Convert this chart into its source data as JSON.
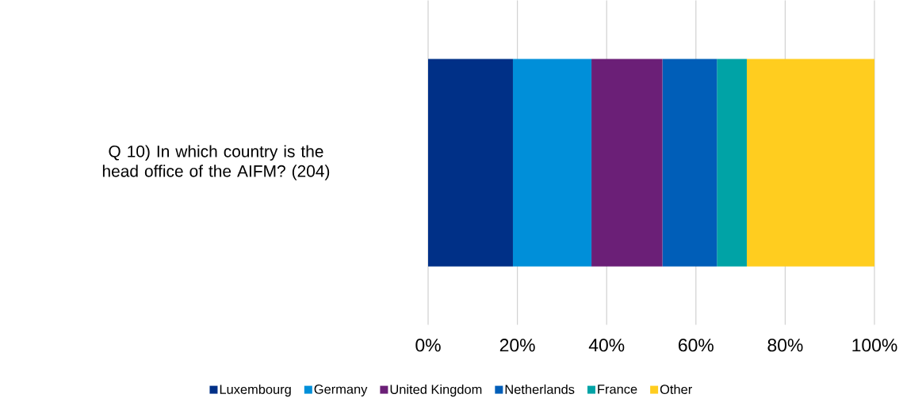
{
  "chart_data": {
    "type": "bar",
    "orientation": "horizontal",
    "stacked": true,
    "categories": [
      "Q 10) In which country is the head office of the AIFM? (204)"
    ],
    "series": [
      {
        "name": "Luxembourg",
        "color": "#003087",
        "values": [
          19.0
        ]
      },
      {
        "name": "Germany",
        "color": "#008fd9",
        "values": [
          17.6
        ]
      },
      {
        "name": "United Kingdom",
        "color": "#6b1f77",
        "values": [
          15.9
        ]
      },
      {
        "name": "Netherlands",
        "color": "#005eb8",
        "values": [
          12.2
        ]
      },
      {
        "name": "France",
        "color": "#00a3a6",
        "values": [
          6.7
        ]
      },
      {
        "name": "Other",
        "color": "#ffcd1f",
        "values": [
          28.6
        ]
      }
    ],
    "xlim": [
      0,
      100
    ],
    "xticks": [
      {
        "value": 0,
        "label": "0%"
      },
      {
        "value": 20,
        "label": "20%"
      },
      {
        "value": 40,
        "label": "40%"
      },
      {
        "value": 60,
        "label": "60%"
      },
      {
        "value": 80,
        "label": "80%"
      },
      {
        "value": 100,
        "label": "100%"
      }
    ],
    "grid": "x",
    "legend": "bottom"
  }
}
